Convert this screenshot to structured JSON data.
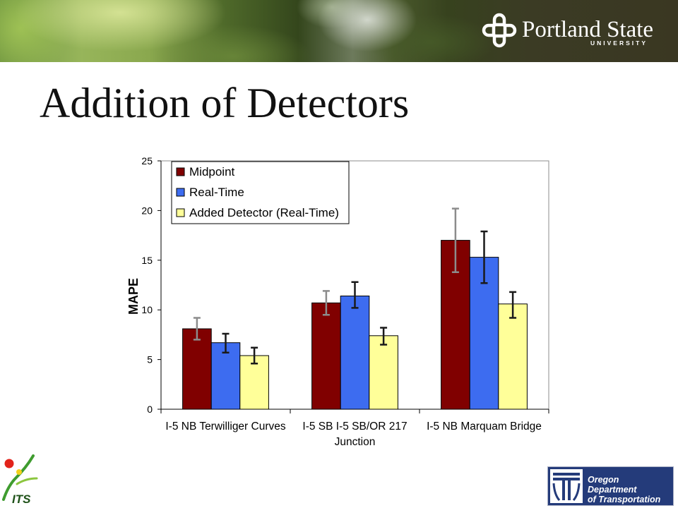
{
  "header": {
    "university_name": "Portland State",
    "university_sub": "UNIVERSITY"
  },
  "slide": {
    "title": "Addition of Detectors"
  },
  "chart_data": {
    "type": "bar",
    "ylabel": "MAPE",
    "ylim": [
      0,
      25
    ],
    "yticks": [
      0,
      5,
      10,
      15,
      20,
      25
    ],
    "grid": false,
    "legend": "top-left",
    "categories": [
      "I-5 NB Terwilliger Curves",
      "I-5 SB I-5 SB/OR 217 Junction",
      "I-5 NB Marquam Bridge"
    ],
    "series": [
      {
        "name": "Midpoint",
        "color": "#800000",
        "error_color": "#8c8c8c",
        "values": [
          8.1,
          10.7,
          17.0
        ],
        "error_bars": [
          [
            7.0,
            9.2
          ],
          [
            9.5,
            11.9
          ],
          [
            13.8,
            20.2
          ]
        ]
      },
      {
        "name": "Real-Time",
        "color": "#3d6cf0",
        "error_color": "#1a1a1a",
        "values": [
          6.7,
          11.4,
          15.3
        ],
        "error_bars": [
          [
            5.7,
            7.6
          ],
          [
            10.2,
            12.8
          ],
          [
            12.7,
            17.9
          ]
        ]
      },
      {
        "name": "Added Detector (Real-Time)",
        "color": "#ffff99",
        "error_color": "#1a1a1a",
        "values": [
          5.4,
          7.4,
          10.6
        ],
        "error_bars": [
          [
            4.6,
            6.2
          ],
          [
            6.5,
            8.2
          ],
          [
            9.2,
            11.8
          ]
        ]
      }
    ]
  },
  "footer": {
    "its_logo": "ITS",
    "odot_logo": [
      "Oregon",
      "Department",
      "of Transportation"
    ]
  }
}
